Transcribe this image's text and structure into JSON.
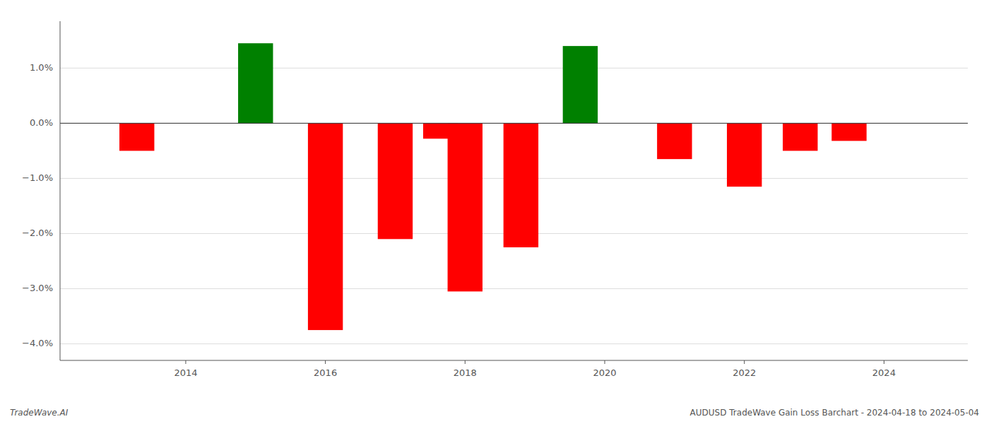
{
  "chart_data": {
    "type": "bar",
    "x": [
      2013.3,
      2015.0,
      2016.0,
      2017.0,
      2017.65,
      2018.0,
      2018.8,
      2019.65,
      2021.0,
      2022.0,
      2022.8,
      2023.5
    ],
    "values": [
      -0.5,
      1.45,
      -3.75,
      -2.1,
      -0.28,
      -3.05,
      -2.25,
      1.4,
      -0.65,
      -1.15,
      -0.5,
      -0.32
    ],
    "colors": [
      "#ff0000",
      "#008000",
      "#ff0000",
      "#ff0000",
      "#ff0000",
      "#ff0000",
      "#ff0000",
      "#008000",
      "#ff0000",
      "#ff0000",
      "#ff0000",
      "#ff0000"
    ],
    "xlim": [
      2012.2,
      2025.2
    ],
    "xticks": [
      2014,
      2016,
      2018,
      2020,
      2022,
      2024
    ],
    "ylim": [
      -4.3,
      1.85
    ],
    "yticks": [
      {
        "value": -4.0,
        "label": "−4.0%"
      },
      {
        "value": -3.0,
        "label": "−3.0%"
      },
      {
        "value": -2.0,
        "label": "−2.0%"
      },
      {
        "value": -1.0,
        "label": "−1.0%"
      },
      {
        "value": 0.0,
        "label": "0.0%"
      },
      {
        "value": 1.0,
        "label": "1.0%"
      }
    ],
    "grid": true,
    "annotations": [
      "TradeWave.AI",
      "AUDUSD TradeWave Gain Loss Barchart - 2024-04-18 to 2024-05-04"
    ]
  }
}
